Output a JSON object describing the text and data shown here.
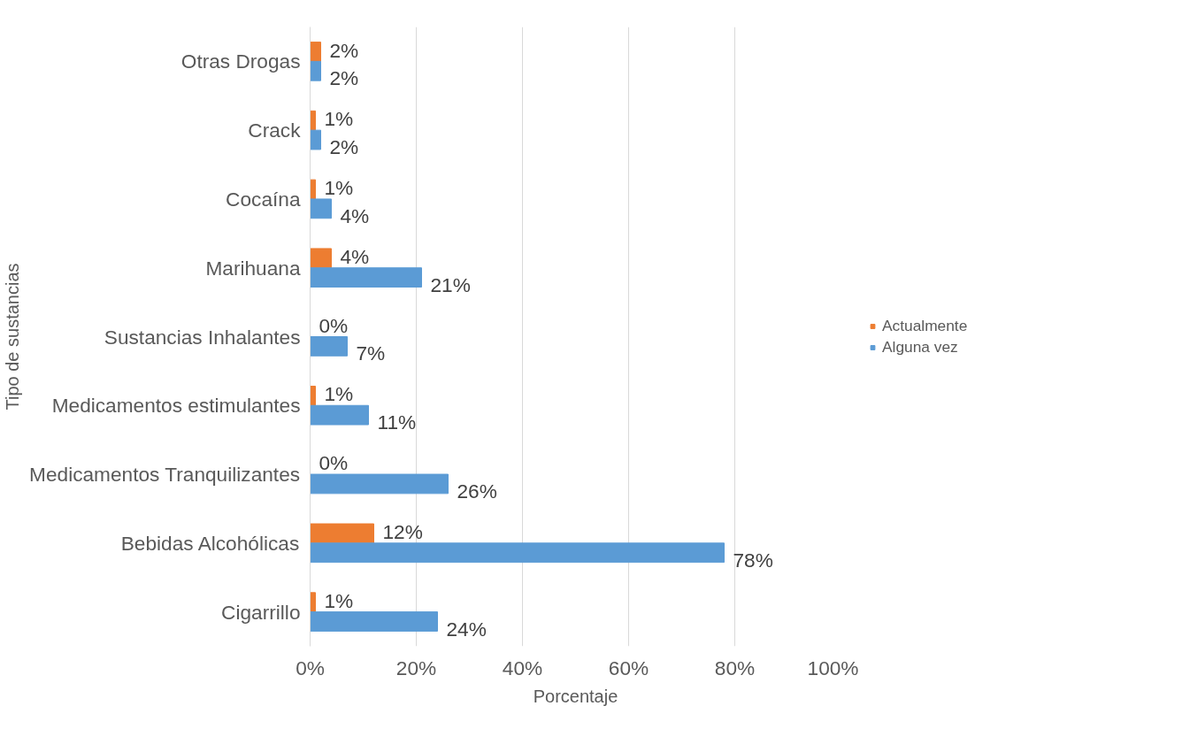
{
  "chart_data": {
    "type": "bar",
    "orientation": "horizontal",
    "xlabel": "Porcentaje",
    "ylabel": "Tipo de sustancias",
    "categories": [
      "Otras Drogas",
      "Crack",
      "Cocaína",
      "Marihuana",
      "Sustancias Inhalantes",
      "Medicamentos estimulantes",
      "Medicamentos Tranquilizantes",
      "Bebidas Alcohólicas",
      "Cigarrillo"
    ],
    "series": [
      {
        "name": "Actualmente",
        "color": "#ed7d31",
        "values": [
          2,
          1,
          1,
          4,
          0,
          1,
          0,
          12,
          1
        ],
        "value_labels": [
          "2%",
          "1%",
          "1%",
          "4%",
          "0%",
          "1%",
          "0%",
          "12%",
          "1%"
        ]
      },
      {
        "name": "Alguna vez",
        "color": "#5b9bd5",
        "values": [
          2,
          2,
          4,
          21,
          7,
          11,
          26,
          78,
          24
        ],
        "value_labels": [
          "2%",
          "2%",
          "4%",
          "21%",
          "7%",
          "11%",
          "26%",
          "78%",
          "24%"
        ]
      }
    ],
    "xlim": [
      0,
      100
    ],
    "xticks": [
      {
        "value": 0,
        "label": "0%"
      },
      {
        "value": 20,
        "label": "20%"
      },
      {
        "value": 40,
        "label": "40%"
      },
      {
        "value": 60,
        "label": "60%"
      },
      {
        "value": 80,
        "label": "80%"
      },
      {
        "value": 100,
        "label": "100%"
      }
    ],
    "grid": "x",
    "legend": "right"
  }
}
